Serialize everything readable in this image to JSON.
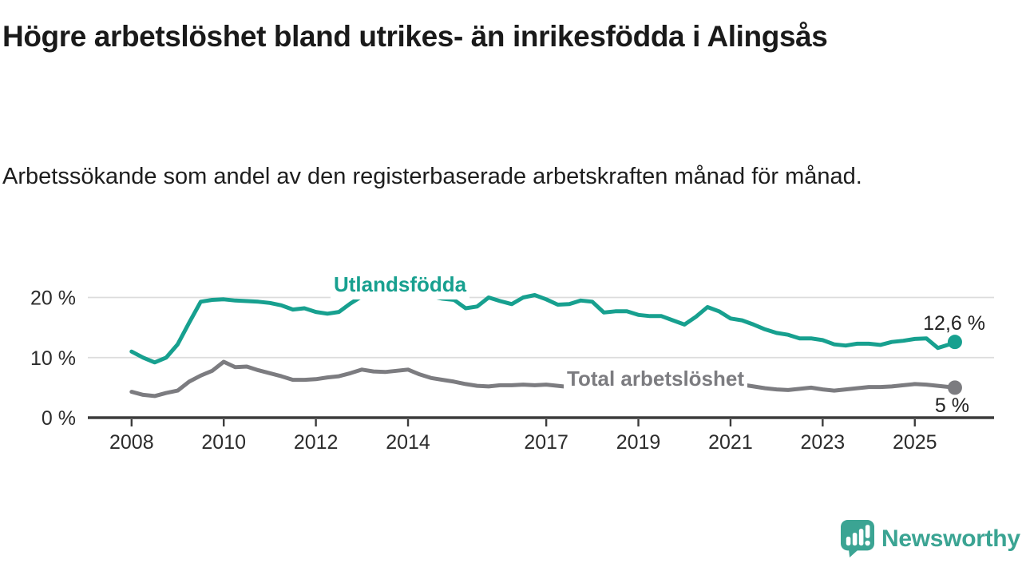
{
  "page": {
    "title": "Högre arbetslöshet bland utrikes- än inrikesfödda i Alingsås",
    "subtitle": "Arbetssökande som andel av den registerbaserade arbetskraften månad för månad."
  },
  "colors": {
    "accent": "#17A08F",
    "gray": "#7C7C80",
    "logo": "#3BA493",
    "axis": "#3C3C3C",
    "grid": "#DCDCDC",
    "title_text": "#1A1A1A",
    "tick_text": "#2C2C2C",
    "end_label_text": "#222222",
    "background": "#FFFFFF"
  },
  "branding": {
    "logo_text": "Newsworthy",
    "logo_icon": "bar-chart-speech-bubble-icon"
  },
  "chart_data": {
    "type": "line",
    "title": "Högre arbetslöshet bland utrikes- än inrikesfödda i Alingsås",
    "subtitle": "Arbetssökande som andel av den registerbaserade arbetskraften månad för månad.",
    "xlabel": "",
    "ylabel": "",
    "grid": "horizontal-only",
    "legend": "inline-series-labels",
    "xlim": [
      2007.05,
      2026.72
    ],
    "ylim": [
      0,
      22.5
    ],
    "x_ticks": [
      2008,
      2010,
      2012,
      2014,
      2017,
      2019,
      2021,
      2023,
      2025
    ],
    "y_ticks": [
      {
        "value": 0,
        "label": "0 %"
      },
      {
        "value": 10,
        "label": "10 %"
      },
      {
        "value": 20,
        "label": "20 %"
      }
    ],
    "x": [
      2008,
      2008.25,
      2008.5,
      2008.75,
      2009,
      2009.25,
      2009.5,
      2009.75,
      2010,
      2010.25,
      2010.5,
      2010.75,
      2011,
      2011.25,
      2011.5,
      2011.75,
      2012,
      2012.25,
      2012.5,
      2012.75,
      2013,
      2013.25,
      2013.5,
      2013.75,
      2014,
      2014.25,
      2014.5,
      2014.75,
      2015,
      2015.25,
      2015.5,
      2015.75,
      2016,
      2016.25,
      2016.5,
      2016.75,
      2017,
      2017.25,
      2017.5,
      2017.75,
      2018,
      2018.25,
      2018.5,
      2018.75,
      2019,
      2019.25,
      2019.5,
      2019.75,
      2020,
      2020.25,
      2020.5,
      2020.75,
      2021,
      2021.25,
      2021.5,
      2021.75,
      2022,
      2022.25,
      2022.5,
      2022.75,
      2023,
      2023.25,
      2023.5,
      2023.75,
      2024,
      2024.25,
      2024.5,
      2024.75,
      2025,
      2025.25,
      2025.5,
      2025.75,
      2025.87
    ],
    "series": [
      {
        "id": "utlandsfodda",
        "name": "Utlandsfödda",
        "color": "#17A08F",
        "end_label": "12,6 %",
        "end_value": 12.6,
        "values": [
          11.0,
          10.0,
          9.2,
          10.0,
          12.2,
          15.8,
          19.3,
          19.6,
          19.7,
          19.5,
          19.4,
          19.3,
          19.1,
          18.7,
          18.0,
          18.2,
          17.6,
          17.3,
          17.6,
          19.0,
          20.2,
          20.0,
          20.3,
          20.1,
          20.3,
          20.0,
          20.2,
          19.8,
          19.6,
          18.2,
          18.5,
          20.0,
          19.4,
          18.9,
          20.0,
          20.4,
          19.7,
          18.8,
          18.9,
          19.5,
          19.3,
          17.5,
          17.7,
          17.7,
          17.1,
          16.9,
          16.9,
          16.2,
          15.5,
          16.8,
          18.4,
          17.7,
          16.5,
          16.2,
          15.5,
          14.7,
          14.1,
          13.8,
          13.2,
          13.2,
          12.9,
          12.2,
          12.0,
          12.3,
          12.3,
          12.1,
          12.6,
          12.8,
          13.1,
          13.2,
          11.6,
          12.2,
          12.6
        ]
      },
      {
        "id": "total-arbetsloshet",
        "name": "Total arbetslöshet",
        "color": "#7C7C80",
        "end_label": "5 %",
        "end_value": 5,
        "values": [
          4.3,
          3.8,
          3.6,
          4.1,
          4.5,
          6.0,
          7.0,
          7.8,
          9.3,
          8.4,
          8.5,
          7.9,
          7.4,
          6.9,
          6.3,
          6.3,
          6.4,
          6.7,
          6.9,
          7.4,
          8.0,
          7.7,
          7.6,
          7.8,
          8.0,
          7.2,
          6.6,
          6.3,
          6.0,
          5.6,
          5.3,
          5.2,
          5.4,
          5.4,
          5.5,
          5.4,
          5.5,
          5.3,
          5.1,
          4.9,
          4.9,
          4.8,
          4.7,
          4.7,
          4.6,
          4.6,
          4.7,
          4.8,
          5.2,
          6.0,
          6.2,
          6.0,
          5.8,
          5.5,
          5.2,
          4.9,
          4.7,
          4.6,
          4.8,
          5.0,
          4.7,
          4.5,
          4.7,
          4.9,
          5.1,
          5.1,
          5.2,
          5.4,
          5.6,
          5.5,
          5.3,
          5.1,
          5.0
        ]
      }
    ]
  }
}
